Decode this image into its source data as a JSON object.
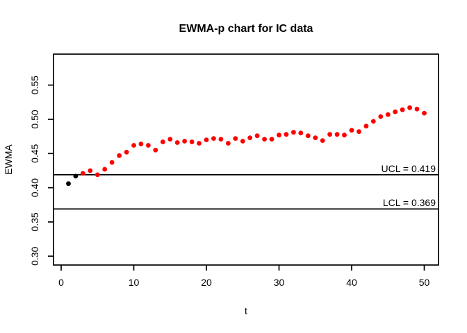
{
  "chart_data": {
    "type": "scatter",
    "title": "EWMA-p chart for IC data",
    "xlabel": "t",
    "ylabel": "EWMA",
    "t": [
      1,
      2,
      3,
      4,
      5,
      6,
      7,
      8,
      9,
      10,
      11,
      12,
      13,
      14,
      15,
      16,
      17,
      18,
      19,
      20,
      21,
      22,
      23,
      24,
      25,
      26,
      27,
      28,
      29,
      30,
      31,
      32,
      33,
      34,
      35,
      36,
      37,
      38,
      39,
      40,
      41,
      42,
      43,
      44,
      45,
      46,
      47,
      48,
      49,
      50
    ],
    "ewma": [
      0.406,
      0.417,
      0.421,
      0.425,
      0.419,
      0.427,
      0.437,
      0.447,
      0.452,
      0.462,
      0.464,
      0.462,
      0.455,
      0.467,
      0.471,
      0.466,
      0.468,
      0.467,
      0.465,
      0.47,
      0.472,
      0.471,
      0.465,
      0.472,
      0.468,
      0.473,
      0.476,
      0.471,
      0.471,
      0.477,
      0.478,
      0.481,
      0.48,
      0.476,
      0.473,
      0.469,
      0.478,
      0.478,
      0.477,
      0.484,
      0.482,
      0.49,
      0.497,
      0.504,
      0.507,
      0.511,
      0.514,
      0.517,
      0.515,
      0.509
    ],
    "initial_black_points": 2,
    "ucl": {
      "value": 0.419,
      "label": "UCL = 0.419"
    },
    "lcl": {
      "value": 0.369,
      "label": "LCL = 0.369"
    },
    "xticks": [
      "0",
      "10",
      "20",
      "30",
      "40",
      "50"
    ],
    "yticks": [
      "0.30",
      "0.35",
      "0.40",
      "0.45",
      "0.50",
      "0.55"
    ],
    "xlim": [
      -1.1,
      52.0
    ],
    "ylim": [
      0.287,
      0.595
    ],
    "grid": false,
    "legend": "none",
    "colors": {
      "point": "#FF0000",
      "initial_point": "#000000",
      "line": "#000000",
      "text": "#000000",
      "background": "#FFFFFF"
    }
  }
}
